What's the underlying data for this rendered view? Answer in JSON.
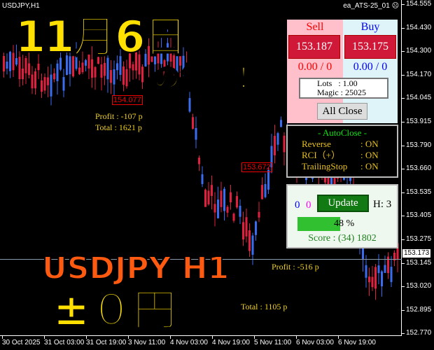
{
  "chart": {
    "symbol": "USDJPY,H1",
    "ea_name": "ea_ATS-25_01",
    "ea_status_icon": "sad-face-icon",
    "current_price": "153.173",
    "price_axis": [
      "154.555",
      "154.430",
      "154.300",
      "154.170",
      "154.045",
      "153.915",
      "153.790",
      "153.660",
      "153.535",
      "153.405",
      "153.275",
      "153.145",
      "153.020",
      "152.895",
      "152.770"
    ],
    "time_axis": [
      "30 Oct 2025",
      "31 Oct 03:00",
      "31 Oct 19:00",
      "3 Nov 11:00",
      "4 Nov 03:00",
      "4 Nov 19:00",
      "5 Nov 11:00",
      "6 Nov 03:00",
      "6 Nov 19:00"
    ],
    "price_labels": [
      "154.077",
      "153.672"
    ],
    "trade_texts": {
      "profit1": "Profit : -107 p",
      "total1": "Total : 1621 p",
      "profit2": "Profit : -516 p",
      "total2": "Total : 1105 p"
    },
    "colors": {
      "bull": "#3a6cf0",
      "bear": "#e0203e"
    }
  },
  "overlay": {
    "date": "11月6日",
    "result": "の結果！",
    "pair": "USDJPY H1",
    "amount": "±０円"
  },
  "panel": {
    "sell_label": "Sell",
    "buy_label": "Buy",
    "sell_price": "153.187",
    "buy_price": "153.175",
    "sell_pl": "0.00 / 0",
    "buy_pl": "0.00 / 0",
    "lots": "Lots   : 1.00",
    "magic": "Magic : 25025",
    "all_close": "All Close"
  },
  "autoclose": {
    "title": "- AutoClose -",
    "rows": [
      {
        "label": "Reverse",
        "value": ": ON"
      },
      {
        "label": "RCI（+）",
        "value": ": ON"
      },
      {
        "label": "TrailingStop",
        "value": ": ON"
      }
    ]
  },
  "lower": {
    "count_blue": "0",
    "count_magenta": "0",
    "update": "Update",
    "h": "H: 3",
    "progress": 48,
    "progress_text": "48 %",
    "score": "Score : (34) 1802"
  }
}
